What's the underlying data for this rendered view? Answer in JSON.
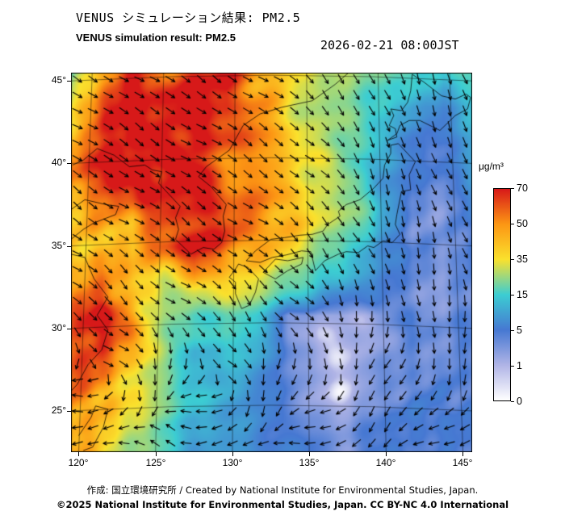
{
  "header": {
    "title_ja": "VENUS シミュレーション結果: PM2.5",
    "title_en": "VENUS simulation result: PM2.5",
    "datetime": "2026-02-21 08:00JST"
  },
  "map": {
    "lat_tick_labels": [
      "45°",
      "40°",
      "35°",
      "30°",
      "25°"
    ],
    "lon_tick_labels": [
      "120°",
      "125°",
      "130°",
      "135°",
      "140°",
      "145°"
    ]
  },
  "colorbar": {
    "unit": "μg/m³",
    "tick_labels": [
      "70",
      "50",
      "35",
      "15",
      "5",
      "1",
      "0"
    ]
  },
  "footer": {
    "credit": "作成: 国立環境研究所 / Created by National Institute for Environmental Studies, Japan.",
    "copyright": "©2025 National Institute for Environmental Studies, Japan. CC BY-NC 4.0 International"
  },
  "chart_data": {
    "type": "heatmap",
    "title": "VENUS simulation result: PM2.5",
    "datetime": "2026-02-21 08:00JST",
    "unit": "μg/m³",
    "lon_range": [
      119.5,
      145.6
    ],
    "lat_range": [
      22.5,
      45.5
    ],
    "lat_gridlines": [
      25,
      30,
      35,
      40,
      45
    ],
    "lon_gridlines": [
      120,
      125,
      130,
      135,
      140,
      145
    ],
    "overlay": "wind-vectors",
    "grid_lons": [
      119.5,
      121.5,
      123.5,
      125.5,
      127.5,
      129.6,
      131.6,
      133.6,
      135.6,
      137.6,
      139.6,
      141.7,
      143.7,
      145.7
    ],
    "grid_lats": [
      45.5,
      43.4,
      41.3,
      39.2,
      37.1,
      35.0,
      32.9,
      30.8,
      28.7,
      26.6,
      24.5,
      22.4
    ],
    "pm25_values": [
      [
        18,
        45,
        70,
        60,
        65,
        70,
        50,
        40,
        30,
        25,
        22,
        18,
        12,
        20
      ],
      [
        35,
        60,
        70,
        68,
        70,
        70,
        55,
        38,
        28,
        22,
        16,
        8,
        6,
        12
      ],
      [
        50,
        68,
        70,
        70,
        70,
        62,
        48,
        40,
        30,
        20,
        12,
        5,
        6,
        10
      ],
      [
        55,
        70,
        70,
        68,
        70,
        55,
        52,
        45,
        35,
        22,
        10,
        4,
        4,
        8
      ],
      [
        45,
        55,
        50,
        70,
        70,
        60,
        48,
        42,
        34,
        24,
        12,
        4,
        3,
        6
      ],
      [
        40,
        45,
        38,
        60,
        70,
        55,
        48,
        40,
        28,
        16,
        10,
        4,
        3,
        5
      ],
      [
        50,
        55,
        42,
        30,
        45,
        38,
        30,
        22,
        14,
        9,
        6,
        4,
        3,
        4
      ],
      [
        62,
        68,
        50,
        25,
        18,
        22,
        15,
        4,
        1,
        1,
        2,
        4,
        3,
        4
      ],
      [
        70,
        65,
        45,
        25,
        12,
        14,
        10,
        4,
        1,
        0.5,
        2,
        4,
        4,
        4
      ],
      [
        60,
        52,
        38,
        22,
        15,
        10,
        7,
        3,
        1,
        1,
        3,
        5,
        5,
        5
      ],
      [
        52,
        45,
        32,
        20,
        12,
        9,
        6,
        4,
        3,
        2,
        4,
        6,
        6,
        5
      ],
      [
        46,
        40,
        28,
        18,
        11,
        8,
        6,
        5,
        4,
        3,
        5,
        6,
        5,
        5
      ]
    ],
    "scale": {
      "tick_values": [
        0,
        1,
        5,
        15,
        35,
        50,
        70
      ],
      "stop_colors": [
        "#ffffff",
        "#b0b4e6",
        "#4678d2",
        "#3ccdd2",
        "#fae12d",
        "#fc9614",
        "#d71919"
      ]
    }
  }
}
